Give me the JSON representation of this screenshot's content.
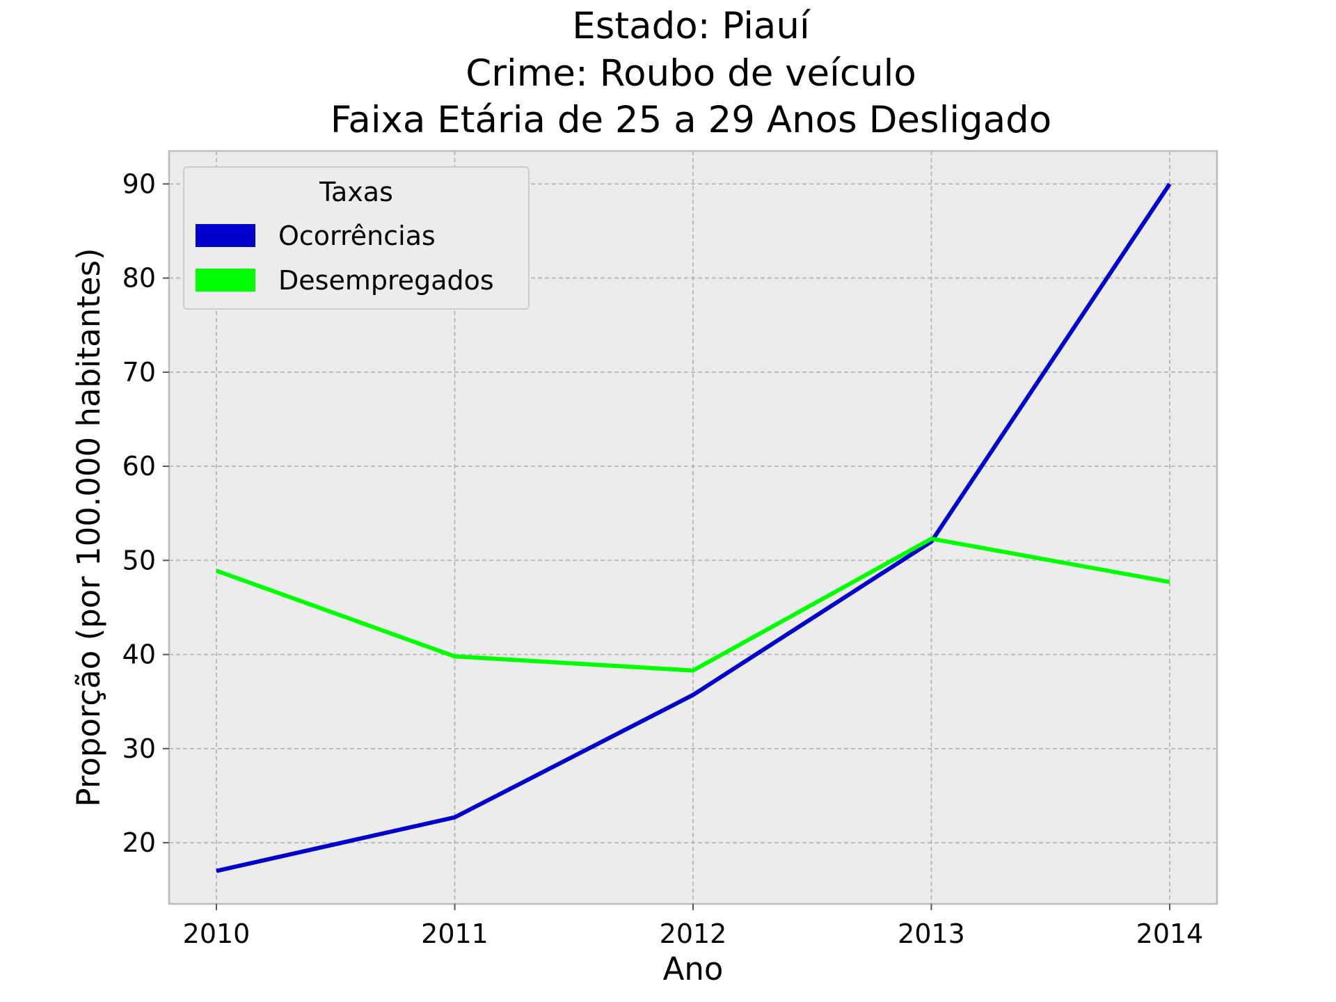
{
  "chart_data": {
    "type": "line",
    "title": [
      "Estado: Piauí",
      "Crime: Roubo de veículo",
      "Faixa Etária de 25 a 29 Anos   Desligado"
    ],
    "xlabel": "Ano",
    "ylabel": "Proporção (por 100.000 habitantes)",
    "x": [
      "2010",
      "2011",
      "2012",
      "2013",
      "2014"
    ],
    "yticks": [
      "20",
      "30",
      "40",
      "50",
      "60",
      "70",
      "80",
      "90"
    ],
    "ylim": [
      13.5,
      93.5
    ],
    "grid": true,
    "legend": {
      "title": "Taxas",
      "placement": "top-left"
    },
    "series": [
      {
        "name": "Ocorrências",
        "color": "#0000cc",
        "values": [
          17.0,
          22.7,
          35.7,
          52.0,
          90.0
        ]
      },
      {
        "name": "Desempregados",
        "color": "#00ff00",
        "values": [
          48.9,
          39.8,
          38.3,
          52.3,
          47.7
        ]
      }
    ]
  }
}
